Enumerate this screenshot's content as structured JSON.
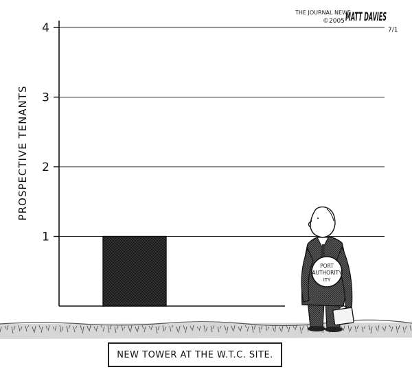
{
  "credit": {
    "publication": "THE JOURNAL NEWS",
    "copyright": "©2005",
    "signature": "MATT DAVIES",
    "date_mark": "7/1"
  },
  "chart_data": {
    "type": "bar",
    "ylabel": "PROSPECTIVE TENANTS",
    "yticks": [
      "1",
      "2",
      "3",
      "4"
    ],
    "ylim": [
      0,
      4
    ],
    "categories": [
      ""
    ],
    "values": [
      1
    ],
    "grid": true
  },
  "figure": {
    "badge_lines": [
      "PORT",
      "AUTHORITY"
    ]
  },
  "caption": "NEW TOWER AT THE W.T.C. SITE."
}
